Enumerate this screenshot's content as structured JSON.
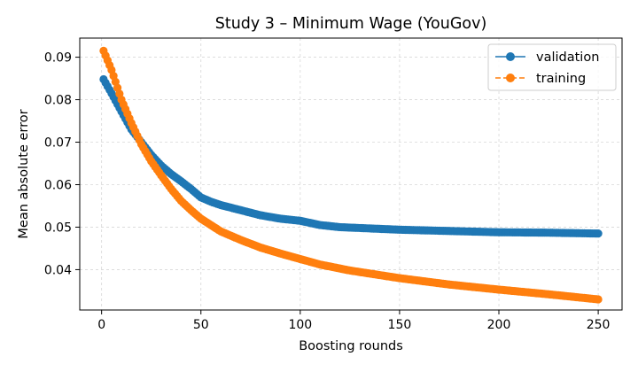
{
  "chart_data": {
    "type": "line",
    "title": "Study 3 – Minimum Wage (YouGov)",
    "xlabel": "Boosting rounds",
    "ylabel": "Mean absolute error",
    "xlim": [
      -11,
      262
    ],
    "ylim": [
      0.0305,
      0.0945
    ],
    "xticks": [
      0,
      50,
      100,
      150,
      200,
      250
    ],
    "yticks": [
      0.04,
      0.05,
      0.06,
      0.07,
      0.08,
      0.09
    ],
    "ytick_labels": [
      "0.04",
      "0.05",
      "0.06",
      "0.07",
      "0.08",
      "0.09"
    ],
    "grid": true,
    "legend_position": "top-right",
    "x_start": 1,
    "x_end": 250,
    "series": [
      {
        "name": "validation",
        "color": "#1f77b4",
        "linestyle": "solid",
        "marker": "circle",
        "anchors": [
          [
            1,
            0.0848
          ],
          [
            5,
            0.0815
          ],
          [
            10,
            0.0772
          ],
          [
            15,
            0.073
          ],
          [
            20,
            0.07
          ],
          [
            25,
            0.067
          ],
          [
            30,
            0.0645
          ],
          [
            35,
            0.0625
          ],
          [
            40,
            0.0608
          ],
          [
            45,
            0.059
          ],
          [
            50,
            0.057
          ],
          [
            55,
            0.056
          ],
          [
            60,
            0.0552
          ],
          [
            70,
            0.054
          ],
          [
            80,
            0.0528
          ],
          [
            90,
            0.052
          ],
          [
            100,
            0.0515
          ],
          [
            110,
            0.0505
          ],
          [
            120,
            0.05
          ],
          [
            150,
            0.0494
          ],
          [
            175,
            0.0491
          ],
          [
            200,
            0.0488
          ],
          [
            225,
            0.0487
          ],
          [
            250,
            0.0485
          ]
        ]
      },
      {
        "name": "training",
        "color": "#ff7f0e",
        "linestyle": "dashed",
        "marker": "circle",
        "anchors": [
          [
            1,
            0.0915
          ],
          [
            5,
            0.087
          ],
          [
            10,
            0.08
          ],
          [
            15,
            0.0745
          ],
          [
            20,
            0.0695
          ],
          [
            25,
            0.0655
          ],
          [
            30,
            0.0622
          ],
          [
            35,
            0.059
          ],
          [
            40,
            0.0562
          ],
          [
            45,
            0.054
          ],
          [
            50,
            0.052
          ],
          [
            60,
            0.049
          ],
          [
            70,
            0.047
          ],
          [
            80,
            0.0452
          ],
          [
            90,
            0.0438
          ],
          [
            100,
            0.0425
          ],
          [
            110,
            0.0412
          ],
          [
            125,
            0.0398
          ],
          [
            150,
            0.038
          ],
          [
            175,
            0.0365
          ],
          [
            200,
            0.0353
          ],
          [
            225,
            0.0342
          ],
          [
            250,
            0.033
          ]
        ]
      }
    ]
  }
}
